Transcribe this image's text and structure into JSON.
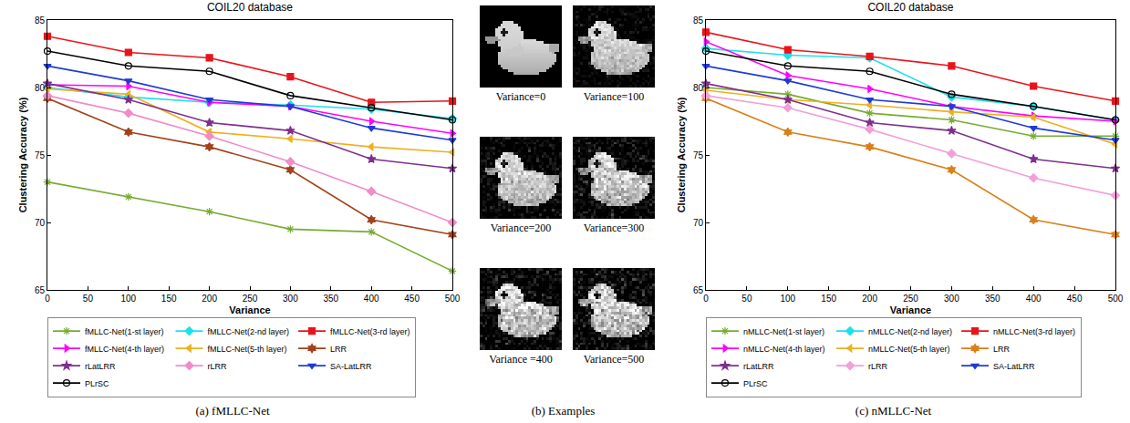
{
  "chart_data": [
    {
      "type": "line",
      "title": "COIL20 database",
      "caption": "(a) fMLLC-Net",
      "x_label": "Variance",
      "y_label": "Clustering Accuracy (%)",
      "x": [
        0,
        100,
        200,
        300,
        400,
        500
      ],
      "xlim": [
        0,
        500
      ],
      "xticks": [
        0,
        50,
        100,
        150,
        200,
        250,
        300,
        350,
        400,
        450,
        500
      ],
      "ylim": [
        65,
        85
      ],
      "yticks": [
        65,
        70,
        75,
        80,
        85
      ],
      "grid": false,
      "legend": "bottom",
      "series": [
        {
          "name": "fMLLC-Net(1-st layer)",
          "color": "#77ac30",
          "marker": "asterisk-open",
          "values": [
            73.0,
            71.9,
            70.8,
            69.5,
            69.3,
            66.4
          ]
        },
        {
          "name": "fMLLC-Net(2-nd layer)",
          "color": "#1fe0ea",
          "marker": "diamond",
          "values": [
            80.0,
            79.3,
            78.9,
            78.7,
            78.4,
            77.7
          ]
        },
        {
          "name": "fMLLC-Net(3-rd layer)",
          "color": "#e8141b",
          "marker": "square",
          "values": [
            83.8,
            82.6,
            82.2,
            80.8,
            78.9,
            79.0
          ]
        },
        {
          "name": "fMLLC-Net(4-th layer)",
          "color": "#ff00ff",
          "marker": "triangle-right",
          "values": [
            80.2,
            80.1,
            78.9,
            78.6,
            77.5,
            76.6
          ]
        },
        {
          "name": "fMLLC-Net(5-th layer)",
          "color": "#edb120",
          "marker": "triangle-left",
          "values": [
            79.9,
            79.5,
            76.7,
            76.2,
            75.6,
            75.2
          ]
        },
        {
          "name": "LRR",
          "color": "#a2421a",
          "marker": "hexagram",
          "values": [
            79.2,
            76.7,
            75.6,
            73.9,
            70.2,
            69.1
          ]
        },
        {
          "name": "rLatLRR",
          "color": "#7e2f8e",
          "marker": "star",
          "values": [
            80.3,
            79.1,
            77.4,
            76.8,
            74.7,
            74.0
          ]
        },
        {
          "name": "rLRR",
          "color": "#f08cc8",
          "marker": "diamond",
          "values": [
            79.4,
            78.1,
            76.4,
            74.5,
            72.3,
            70.0
          ]
        },
        {
          "name": "SA-LatLRR",
          "color": "#1f3bd6",
          "marker": "triangle-down",
          "values": [
            81.6,
            80.5,
            79.1,
            78.6,
            77.0,
            76.1
          ]
        },
        {
          "name": "PLrSC",
          "color": "#000000",
          "marker": "circle-open",
          "values": [
            82.7,
            81.6,
            81.2,
            79.4,
            78.5,
            77.6
          ]
        }
      ]
    },
    {
      "type": "line",
      "title": "COIL20 database",
      "caption": "(c) nMLLC-Net",
      "x_label": "Variance",
      "y_label": "Clustering Accuracy (%)",
      "x": [
        0,
        100,
        200,
        300,
        400,
        500
      ],
      "xlim": [
        0,
        500
      ],
      "xticks": [
        0,
        50,
        100,
        150,
        200,
        250,
        300,
        350,
        400,
        450,
        500
      ],
      "ylim": [
        65,
        85
      ],
      "yticks": [
        65,
        70,
        75,
        80,
        85
      ],
      "grid": false,
      "legend": "bottom",
      "series": [
        {
          "name": "nMLLC-Net(1-st layer)",
          "color": "#77ac30",
          "marker": "asterisk-open",
          "values": [
            80.0,
            79.5,
            78.1,
            77.6,
            76.4,
            76.4
          ]
        },
        {
          "name": "nMLLC-Net(2-nd layer)",
          "color": "#1fe0ea",
          "marker": "diamond",
          "values": [
            82.9,
            82.4,
            82.2,
            79.3,
            78.6,
            77.6
          ]
        },
        {
          "name": "nMLLC-Net(3-rd layer)",
          "color": "#e8141b",
          "marker": "square",
          "values": [
            84.1,
            82.8,
            82.3,
            81.6,
            80.1,
            79.0
          ]
        },
        {
          "name": "nMLLC-Net(4-th layer)",
          "color": "#ff00ff",
          "marker": "triangle-right",
          "values": [
            83.4,
            80.9,
            79.9,
            78.6,
            77.9,
            77.5
          ]
        },
        {
          "name": "nMLLC-Net(5-th layer)",
          "color": "#edb120",
          "marker": "triangle-left",
          "values": [
            79.8,
            79.1,
            78.7,
            78.2,
            77.8,
            75.8
          ]
        },
        {
          "name": "LRR",
          "color": "#d9801a",
          "marker": "hexagram",
          "values": [
            79.2,
            76.7,
            75.6,
            73.9,
            70.2,
            69.1
          ]
        },
        {
          "name": "rLatLRR",
          "color": "#7e2f8e",
          "marker": "star",
          "values": [
            80.3,
            79.1,
            77.4,
            76.8,
            74.7,
            74.0
          ]
        },
        {
          "name": "rLRR",
          "color": "#f2a0d8",
          "marker": "diamond",
          "values": [
            79.4,
            78.5,
            76.9,
            75.1,
            73.3,
            72.0
          ]
        },
        {
          "name": "SA-LatLRR",
          "color": "#1f3bd6",
          "marker": "triangle-down",
          "values": [
            81.6,
            80.5,
            79.1,
            78.6,
            77.0,
            76.1
          ]
        },
        {
          "name": "PLrSC",
          "color": "#000000",
          "marker": "circle-open",
          "values": [
            82.7,
            81.6,
            81.2,
            79.5,
            78.6,
            77.6
          ]
        }
      ]
    }
  ],
  "examples": {
    "caption": "(b) Examples",
    "images": [
      {
        "label": "Variance=0",
        "variance": 0
      },
      {
        "label": "Variance=100",
        "variance": 100
      },
      {
        "label": "Variance=200",
        "variance": 200
      },
      {
        "label": "Variance=300",
        "variance": 300
      },
      {
        "label": "Variance =400",
        "variance": 400
      },
      {
        "label": "Variance=500",
        "variance": 500
      }
    ]
  }
}
